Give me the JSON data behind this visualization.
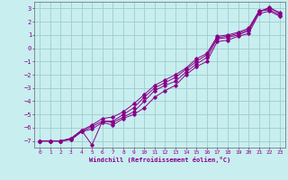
{
  "xlabel": "Windchill (Refroidissement éolien,°C)",
  "ylabel": "",
  "bg_color": "#c8eef0",
  "grid_color": "#a0cccc",
  "line_color": "#880088",
  "xlim": [
    -0.5,
    23.5
  ],
  "ylim": [
    -7.5,
    3.5
  ],
  "xticks": [
    0,
    1,
    2,
    3,
    4,
    5,
    6,
    7,
    8,
    9,
    10,
    11,
    12,
    13,
    14,
    15,
    16,
    17,
    18,
    19,
    20,
    21,
    22,
    23
  ],
  "yticks": [
    -7,
    -6,
    -5,
    -4,
    -3,
    -2,
    -1,
    0,
    1,
    2,
    3
  ],
  "lines": [
    {
      "x": [
        0,
        1,
        2,
        3,
        4,
        5,
        6,
        7,
        8,
        9,
        10,
        11,
        12,
        13,
        14,
        15,
        16,
        17,
        18,
        19,
        20,
        21,
        22,
        23
      ],
      "y": [
        -7.0,
        -7.0,
        -7.0,
        -6.8,
        -6.2,
        -5.8,
        -5.3,
        -5.2,
        -4.8,
        -4.2,
        -3.5,
        -2.8,
        -2.4,
        -2.0,
        -1.5,
        -0.8,
        -0.4,
        0.9,
        1.0,
        1.2,
        1.5,
        2.8,
        3.0,
        2.7
      ]
    },
    {
      "x": [
        0,
        1,
        2,
        3,
        4,
        5,
        6,
        7,
        8,
        9,
        10,
        11,
        12,
        13,
        14,
        15,
        16,
        17,
        18,
        19,
        20,
        21,
        22,
        23
      ],
      "y": [
        -7.0,
        -7.0,
        -7.0,
        -6.8,
        -6.2,
        -7.3,
        -5.5,
        -5.6,
        -5.2,
        -4.8,
        -4.0,
        -3.2,
        -2.8,
        -2.5,
        -1.8,
        -1.2,
        -0.7,
        0.7,
        0.8,
        1.0,
        1.3,
        2.7,
        3.1,
        2.6
      ]
    },
    {
      "x": [
        0,
        1,
        2,
        3,
        4,
        5,
        6,
        7,
        8,
        9,
        10,
        11,
        12,
        13,
        14,
        15,
        16,
        17,
        18,
        19,
        20,
        21,
        22,
        23
      ],
      "y": [
        -7.0,
        -7.0,
        -7.0,
        -6.9,
        -6.3,
        -5.9,
        -5.5,
        -5.5,
        -5.0,
        -4.5,
        -3.7,
        -3.0,
        -2.6,
        -2.2,
        -1.6,
        -1.0,
        -0.5,
        0.8,
        0.9,
        1.1,
        1.4,
        2.8,
        2.9,
        2.5
      ]
    },
    {
      "x": [
        0,
        1,
        2,
        3,
        4,
        5,
        6,
        7,
        8,
        9,
        10,
        11,
        12,
        13,
        14,
        15,
        16,
        17,
        18,
        19,
        20,
        21,
        22,
        23
      ],
      "y": [
        -7.0,
        -7.0,
        -7.0,
        -6.9,
        -6.3,
        -6.1,
        -5.6,
        -5.8,
        -5.3,
        -5.0,
        -4.5,
        -3.7,
        -3.2,
        -2.8,
        -2.0,
        -1.4,
        -1.0,
        0.5,
        0.6,
        0.9,
        1.1,
        2.6,
        2.8,
        2.4
      ]
    }
  ]
}
